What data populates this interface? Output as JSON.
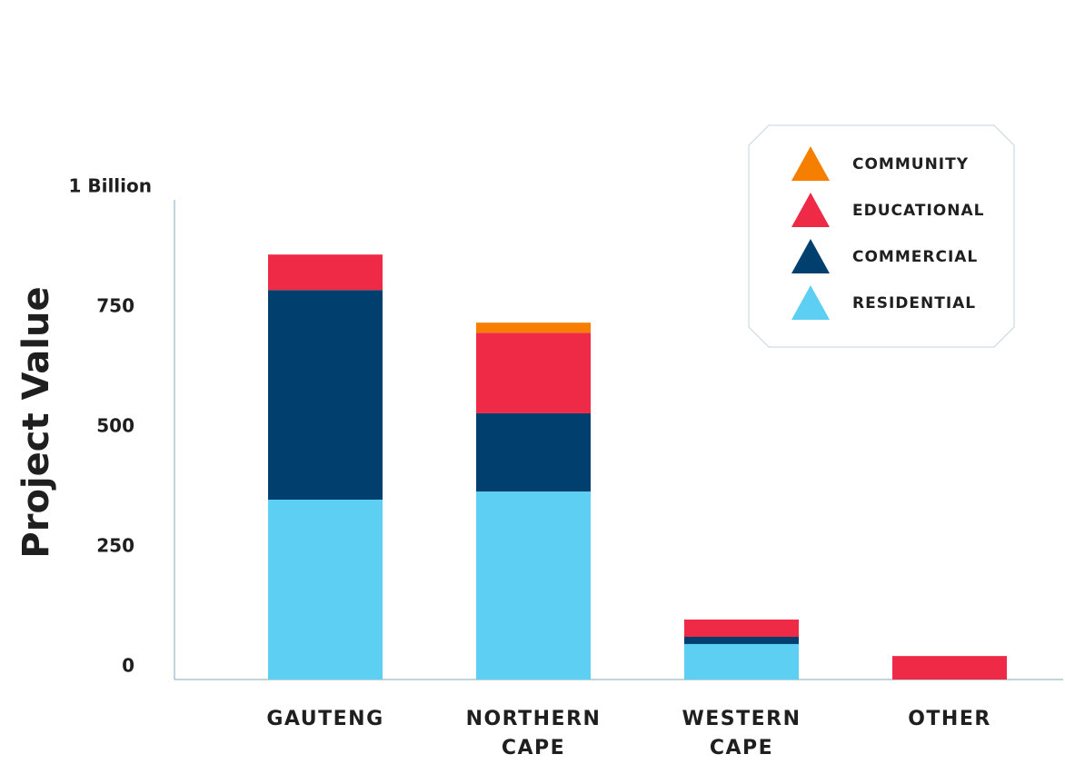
{
  "chart_data": {
    "type": "stacked_bar",
    "y_label": "Project Value",
    "categories": [
      "GAUTENG",
      "NORTHERN CAPE",
      "WESTERN CAPE",
      "OTHER"
    ],
    "series": [
      {
        "name": "RESIDENTIAL",
        "color": "#5ccff2",
        "values": [
          375,
          392,
          74,
          0
        ]
      },
      {
        "name": "COMMERCIAL",
        "color": "#003f6e",
        "values": [
          437,
          163,
          15,
          0
        ]
      },
      {
        "name": "EDUCATIONAL",
        "color": "#ee2a47",
        "values": [
          74,
          168,
          36,
          49
        ]
      },
      {
        "name": "COMMUNITY",
        "color": "#f77f00",
        "values": [
          0,
          21,
          0,
          0
        ]
      }
    ],
    "ylim": [
      0,
      1000
    ],
    "yticks": [
      0,
      250,
      500,
      750,
      {
        "value": 1000,
        "label": "1 Billion"
      }
    ]
  }
}
